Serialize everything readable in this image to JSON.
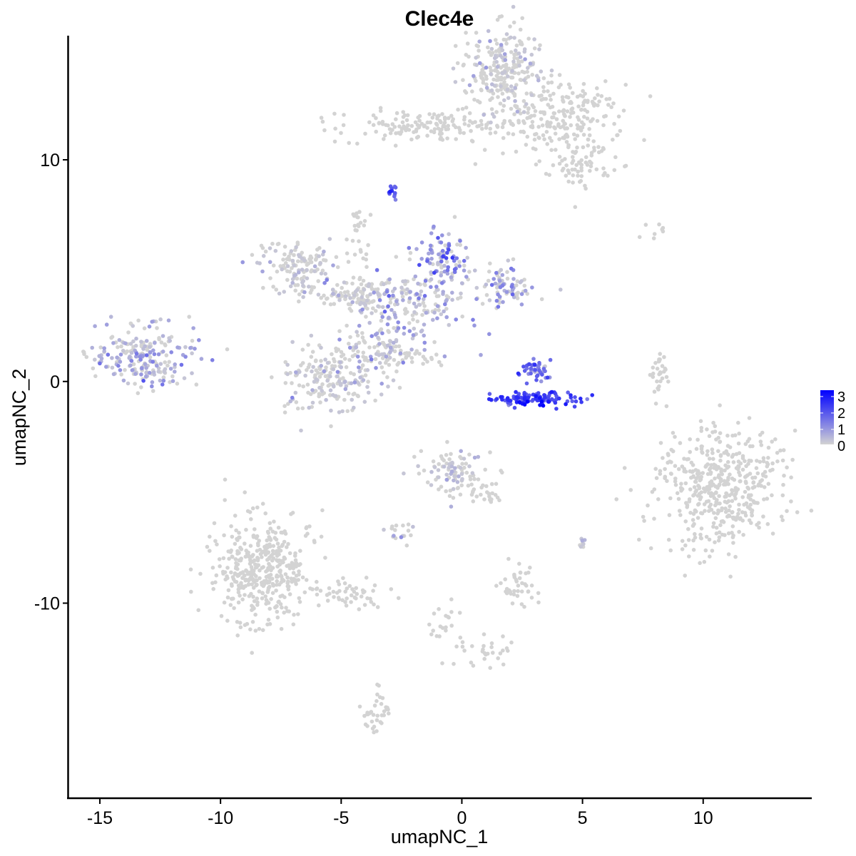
{
  "chart_data": {
    "type": "scatter",
    "title": "Clec4e",
    "xlabel": "umapNC_1",
    "ylabel": "umapNC_2",
    "xlim": [
      -16.3,
      14.5
    ],
    "ylim": [
      -18.8,
      15.6
    ],
    "x_ticks": [
      -15,
      -10,
      -5,
      0,
      5,
      10
    ],
    "x_tick_labels": [
      "-15",
      "-10",
      "-5",
      "0",
      "5",
      "10"
    ],
    "y_ticks": [
      10,
      0,
      -10
    ],
    "y_tick_labels": [
      "10",
      "0",
      "-10"
    ],
    "grid": false,
    "legend": {
      "position": "right",
      "type": "continuous color scale",
      "values": [
        3,
        2,
        1,
        0
      ],
      "labels": [
        "3",
        "2",
        "1",
        "0"
      ],
      "low_color": "#d3d3d3",
      "high_color": "#0000ff"
    },
    "expression_range": [
      0,
      3.3
    ],
    "clusters": [
      {
        "center": [
          1.8,
          14.0
        ],
        "spread": [
          0.8,
          1.0
        ],
        "n": 260,
        "expr": 0.02
      },
      {
        "center": [
          4.2,
          11.8
        ],
        "spread": [
          1.2,
          0.8
        ],
        "n": 220,
        "expr": 0.0
      },
      {
        "center": [
          5.0,
          9.8
        ],
        "spread": [
          0.6,
          0.5
        ],
        "n": 60,
        "expr": 0.0
      },
      {
        "center": [
          -1.5,
          11.5
        ],
        "spread": [
          1.8,
          0.35
        ],
        "n": 150,
        "expr": 0.0
      },
      {
        "center": [
          -2.9,
          8.6
        ],
        "spread": [
          0.12,
          0.25
        ],
        "n": 12,
        "expr": 1.7
      },
      {
        "center": [
          -6.8,
          5.3
        ],
        "spread": [
          0.9,
          0.6
        ],
        "n": 120,
        "expr": 0.05
      },
      {
        "center": [
          -4.3,
          6.5
        ],
        "spread": [
          0.25,
          0.8
        ],
        "n": 30,
        "expr": 0.0
      },
      {
        "center": [
          -4.5,
          4.0
        ],
        "spread": [
          1.3,
          0.4
        ],
        "n": 130,
        "expr": 0.1
      },
      {
        "center": [
          -0.8,
          5.5
        ],
        "spread": [
          0.6,
          0.6
        ],
        "n": 90,
        "expr": 1.1
      },
      {
        "center": [
          1.8,
          4.2
        ],
        "spread": [
          0.6,
          0.5
        ],
        "n": 80,
        "expr": 0.7
      },
      {
        "center": [
          -1.5,
          3.5
        ],
        "spread": [
          1.1,
          0.8
        ],
        "n": 130,
        "expr": 0.7
      },
      {
        "center": [
          -3.3,
          1.8
        ],
        "spread": [
          0.7,
          0.9
        ],
        "n": 110,
        "expr": 0.5
      },
      {
        "center": [
          -5.5,
          0.3
        ],
        "spread": [
          0.9,
          0.8
        ],
        "n": 190,
        "expr": 0.05
      },
      {
        "center": [
          -2.5,
          1.0
        ],
        "spread": [
          1.1,
          0.35
        ],
        "n": 40,
        "expr": 0.0
      },
      {
        "center": [
          -13.3,
          1.1
        ],
        "spread": [
          1.1,
          0.7
        ],
        "n": 230,
        "expr": 0.55
      },
      {
        "center": [
          3.1,
          0.5
        ],
        "spread": [
          0.3,
          0.3
        ],
        "n": 45,
        "expr": 1.5
      },
      {
        "center": [
          3.1,
          -0.8
        ],
        "spread": [
          0.9,
          0.15
        ],
        "n": 120,
        "expr": 2.3
      },
      {
        "center": [
          8.2,
          0.3
        ],
        "spread": [
          0.2,
          0.6
        ],
        "n": 30,
        "expr": 0.0
      },
      {
        "center": [
          10.7,
          -4.8
        ],
        "spread": [
          1.3,
          1.3
        ],
        "n": 460,
        "expr": 0.0
      },
      {
        "center": [
          -0.3,
          -4.0
        ],
        "spread": [
          0.6,
          0.5
        ],
        "n": 90,
        "expr": 0.08
      },
      {
        "center": [
          1.0,
          -4.9
        ],
        "spread": [
          0.4,
          0.4
        ],
        "n": 30,
        "expr": 0.0
      },
      {
        "center": [
          -8.3,
          -8.5
        ],
        "spread": [
          1.0,
          1.2
        ],
        "n": 420,
        "expr": 0.0
      },
      {
        "center": [
          -4.8,
          -9.6
        ],
        "spread": [
          0.9,
          0.3
        ],
        "n": 50,
        "expr": 0.0
      },
      {
        "center": [
          -2.5,
          -6.9
        ],
        "spread": [
          0.3,
          0.2
        ],
        "n": 18,
        "expr": 0.2
      },
      {
        "center": [
          2.5,
          -9.2
        ],
        "spread": [
          0.4,
          0.5
        ],
        "n": 40,
        "expr": 0.0
      },
      {
        "center": [
          -3.5,
          -15.0
        ],
        "spread": [
          0.3,
          0.5
        ],
        "n": 35,
        "expr": 0.0
      },
      {
        "center": [
          0.5,
          -12.2
        ],
        "spread": [
          0.9,
          0.4
        ],
        "n": 30,
        "expr": 0.0
      },
      {
        "center": [
          -0.6,
          -10.9
        ],
        "spread": [
          0.3,
          0.5
        ],
        "n": 18,
        "expr": 0.0
      },
      {
        "center": [
          5.0,
          -7.3
        ],
        "spread": [
          0.1,
          0.2
        ],
        "n": 8,
        "expr": 0.2
      },
      {
        "center": [
          8.0,
          6.9
        ],
        "spread": [
          0.5,
          0.2
        ],
        "n": 8,
        "expr": 0.0
      }
    ]
  }
}
